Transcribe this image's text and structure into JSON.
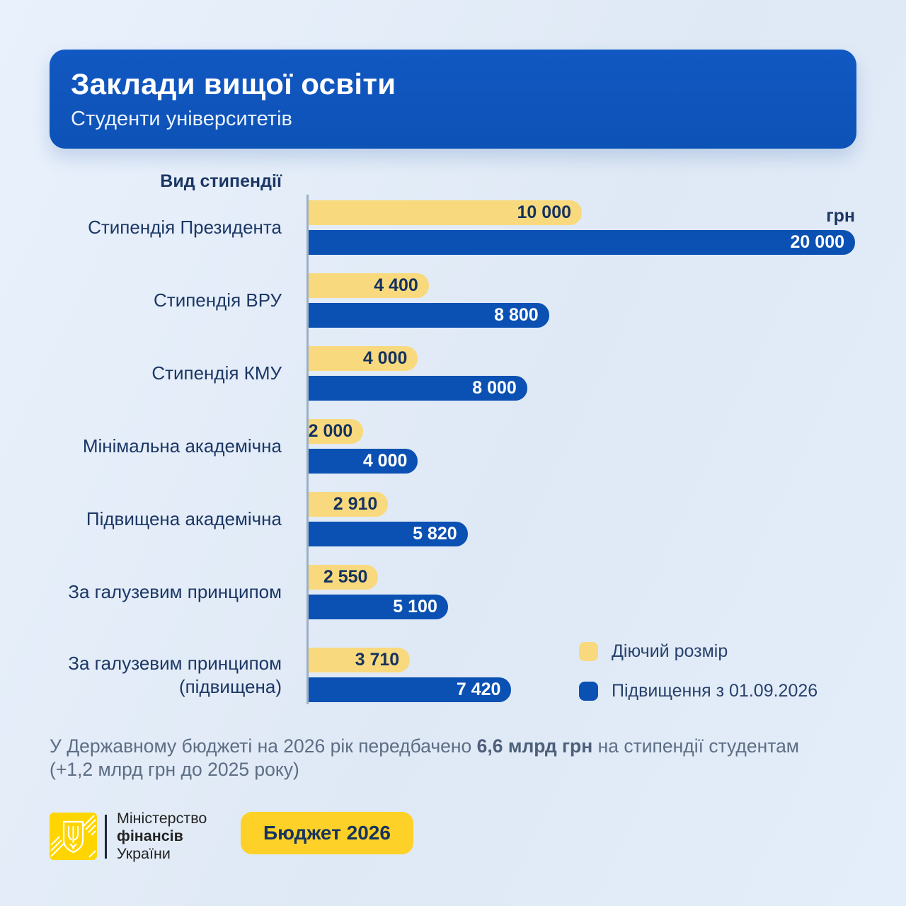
{
  "header": {
    "title": "Заклади вищої освіти",
    "subtitle": "Студенти університетів"
  },
  "chart_data": {
    "type": "bar",
    "orientation": "horizontal",
    "axis_title": "Вид стипендії",
    "unit_label": "грн",
    "xlim": [
      0,
      20000
    ],
    "grid": false,
    "legend_position": "inside-bottom-right",
    "categories": [
      "Стипендія Президента",
      "Стипендія ВРУ",
      "Стипендія КМУ",
      "Мінімальна академічна",
      "Підвищена академічна",
      "За галузевим принципом",
      "За галузевим принципом (підвищена)"
    ],
    "series": [
      {
        "name": "Діючий розмір",
        "color": "#f9d97d",
        "values": [
          10000,
          4400,
          4000,
          2000,
          2910,
          2550,
          3710
        ],
        "labels": [
          "10 000",
          "4 400",
          "4 000",
          "2 000",
          "2 910",
          "2 550",
          "3 710"
        ]
      },
      {
        "name": "Підвищення з 01.09.2026",
        "color": "#0b51b3",
        "values": [
          20000,
          8800,
          8000,
          4000,
          5820,
          5100,
          7420
        ],
        "labels": [
          "20 000",
          "8 800",
          "8 000",
          "4 000",
          "5 820",
          "5 100",
          "7 420"
        ]
      }
    ]
  },
  "footnote": {
    "prefix": "У Державному бюджеті на 2026 рік передбачено ",
    "bold": "6,6 млрд грн",
    "suffix": " на стипендії студентам",
    "line2": "(+1,2 млрд грн до 2025 року)"
  },
  "logo": {
    "emblem": "trident-icon",
    "line1": "Міністерство",
    "line2": "фінансів",
    "line3": "України"
  },
  "button": {
    "label": "Бюджет 2026"
  },
  "colors": {
    "background": "#e3edfa",
    "header_blue": "#0f55bd",
    "bar_blue": "#0b51b3",
    "bar_yellow": "#f9d97d",
    "navy_text": "#1c3765",
    "footnote_gray": "#5d6d84",
    "button_yellow": "#fdd127",
    "emblem_yellow": "#ffd500"
  }
}
